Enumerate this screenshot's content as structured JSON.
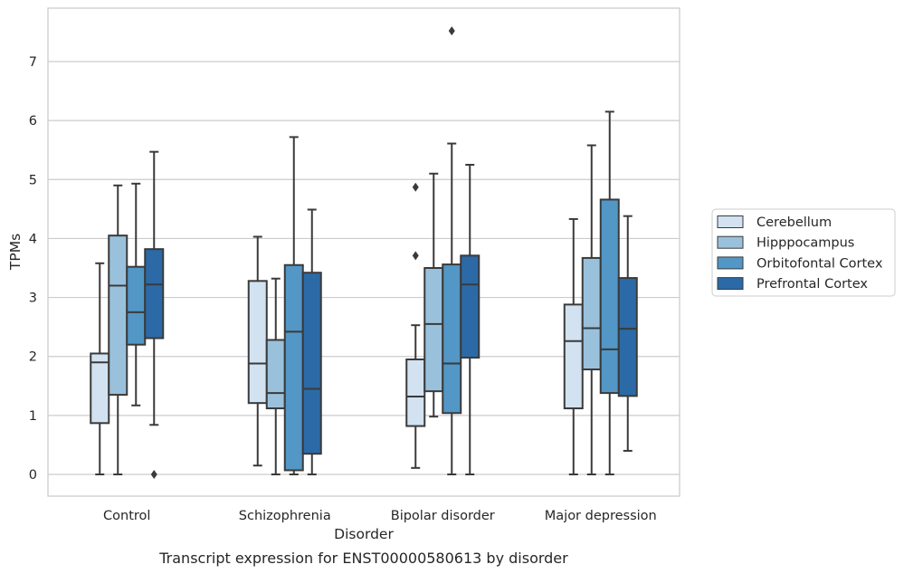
{
  "chart_data": {
    "type": "box",
    "caption": "Transcript expression for ENST00000580613 by disorder",
    "xlabel": "Disorder",
    "ylabel": "TPMs",
    "ylim": [
      -0.35,
      7.9
    ],
    "yticks": [
      0,
      1,
      2,
      3,
      4,
      5,
      6,
      7
    ],
    "grid": "horizontal",
    "legend_position": "right",
    "categories": [
      "Control",
      "Schizophrenia",
      "Bipolar disorder",
      "Major depression"
    ],
    "series": [
      {
        "name": "Cerebellum",
        "color": "#d2e2f0",
        "boxes": [
          {
            "whislo": 0.0,
            "q1": 0.87,
            "med": 1.9,
            "q3": 2.05,
            "whishi": 3.58,
            "fliers": []
          },
          {
            "whislo": 0.15,
            "q1": 1.21,
            "med": 1.88,
            "q3": 3.28,
            "whishi": 4.03,
            "fliers": []
          },
          {
            "whislo": 0.11,
            "q1": 0.82,
            "med": 1.32,
            "q3": 1.95,
            "whishi": 2.53,
            "fliers": [
              3.71,
              4.87
            ]
          },
          {
            "whislo": 0.0,
            "q1": 1.12,
            "med": 2.26,
            "q3": 2.88,
            "whishi": 4.33,
            "fliers": []
          }
        ]
      },
      {
        "name": "Hipppocampus",
        "color": "#9ac1dc",
        "boxes": [
          {
            "whislo": 0.0,
            "q1": 1.35,
            "med": 3.2,
            "q3": 4.05,
            "whishi": 4.9,
            "fliers": []
          },
          {
            "whislo": 0.0,
            "q1": 1.12,
            "med": 1.38,
            "q3": 2.28,
            "whishi": 3.32,
            "fliers": []
          },
          {
            "whislo": 0.98,
            "q1": 1.41,
            "med": 2.55,
            "q3": 3.5,
            "whishi": 5.1,
            "fliers": []
          },
          {
            "whislo": 0.0,
            "q1": 1.78,
            "med": 2.48,
            "q3": 3.67,
            "whishi": 5.58,
            "fliers": []
          }
        ]
      },
      {
        "name": "Orbitofontal Cortex",
        "color": "#5297c6",
        "boxes": [
          {
            "whislo": 1.17,
            "q1": 2.2,
            "med": 2.75,
            "q3": 3.52,
            "whishi": 4.93,
            "fliers": []
          },
          {
            "whislo": 0.0,
            "q1": 0.07,
            "med": 2.42,
            "q3": 3.55,
            "whishi": 5.72,
            "fliers": []
          },
          {
            "whislo": 0.0,
            "q1": 1.04,
            "med": 1.88,
            "q3": 3.56,
            "whishi": 5.61,
            "fliers": [
              7.52
            ]
          },
          {
            "whislo": 0.0,
            "q1": 1.38,
            "med": 2.12,
            "q3": 4.66,
            "whishi": 6.15,
            "fliers": []
          }
        ]
      },
      {
        "name": "Prefrontal Cortex",
        "color": "#2b6aa7",
        "boxes": [
          {
            "whislo": 0.84,
            "q1": 2.31,
            "med": 3.22,
            "q3": 3.82,
            "whishi": 5.47,
            "fliers": [
              0.0
            ]
          },
          {
            "whislo": 0.0,
            "q1": 0.35,
            "med": 1.45,
            "q3": 3.42,
            "whishi": 4.49,
            "fliers": []
          },
          {
            "whislo": 0.0,
            "q1": 1.98,
            "med": 3.22,
            "q3": 3.71,
            "whishi": 5.25,
            "fliers": []
          },
          {
            "whislo": 0.4,
            "q1": 1.33,
            "med": 2.47,
            "q3": 3.33,
            "whishi": 4.38,
            "fliers": []
          }
        ]
      }
    ]
  }
}
